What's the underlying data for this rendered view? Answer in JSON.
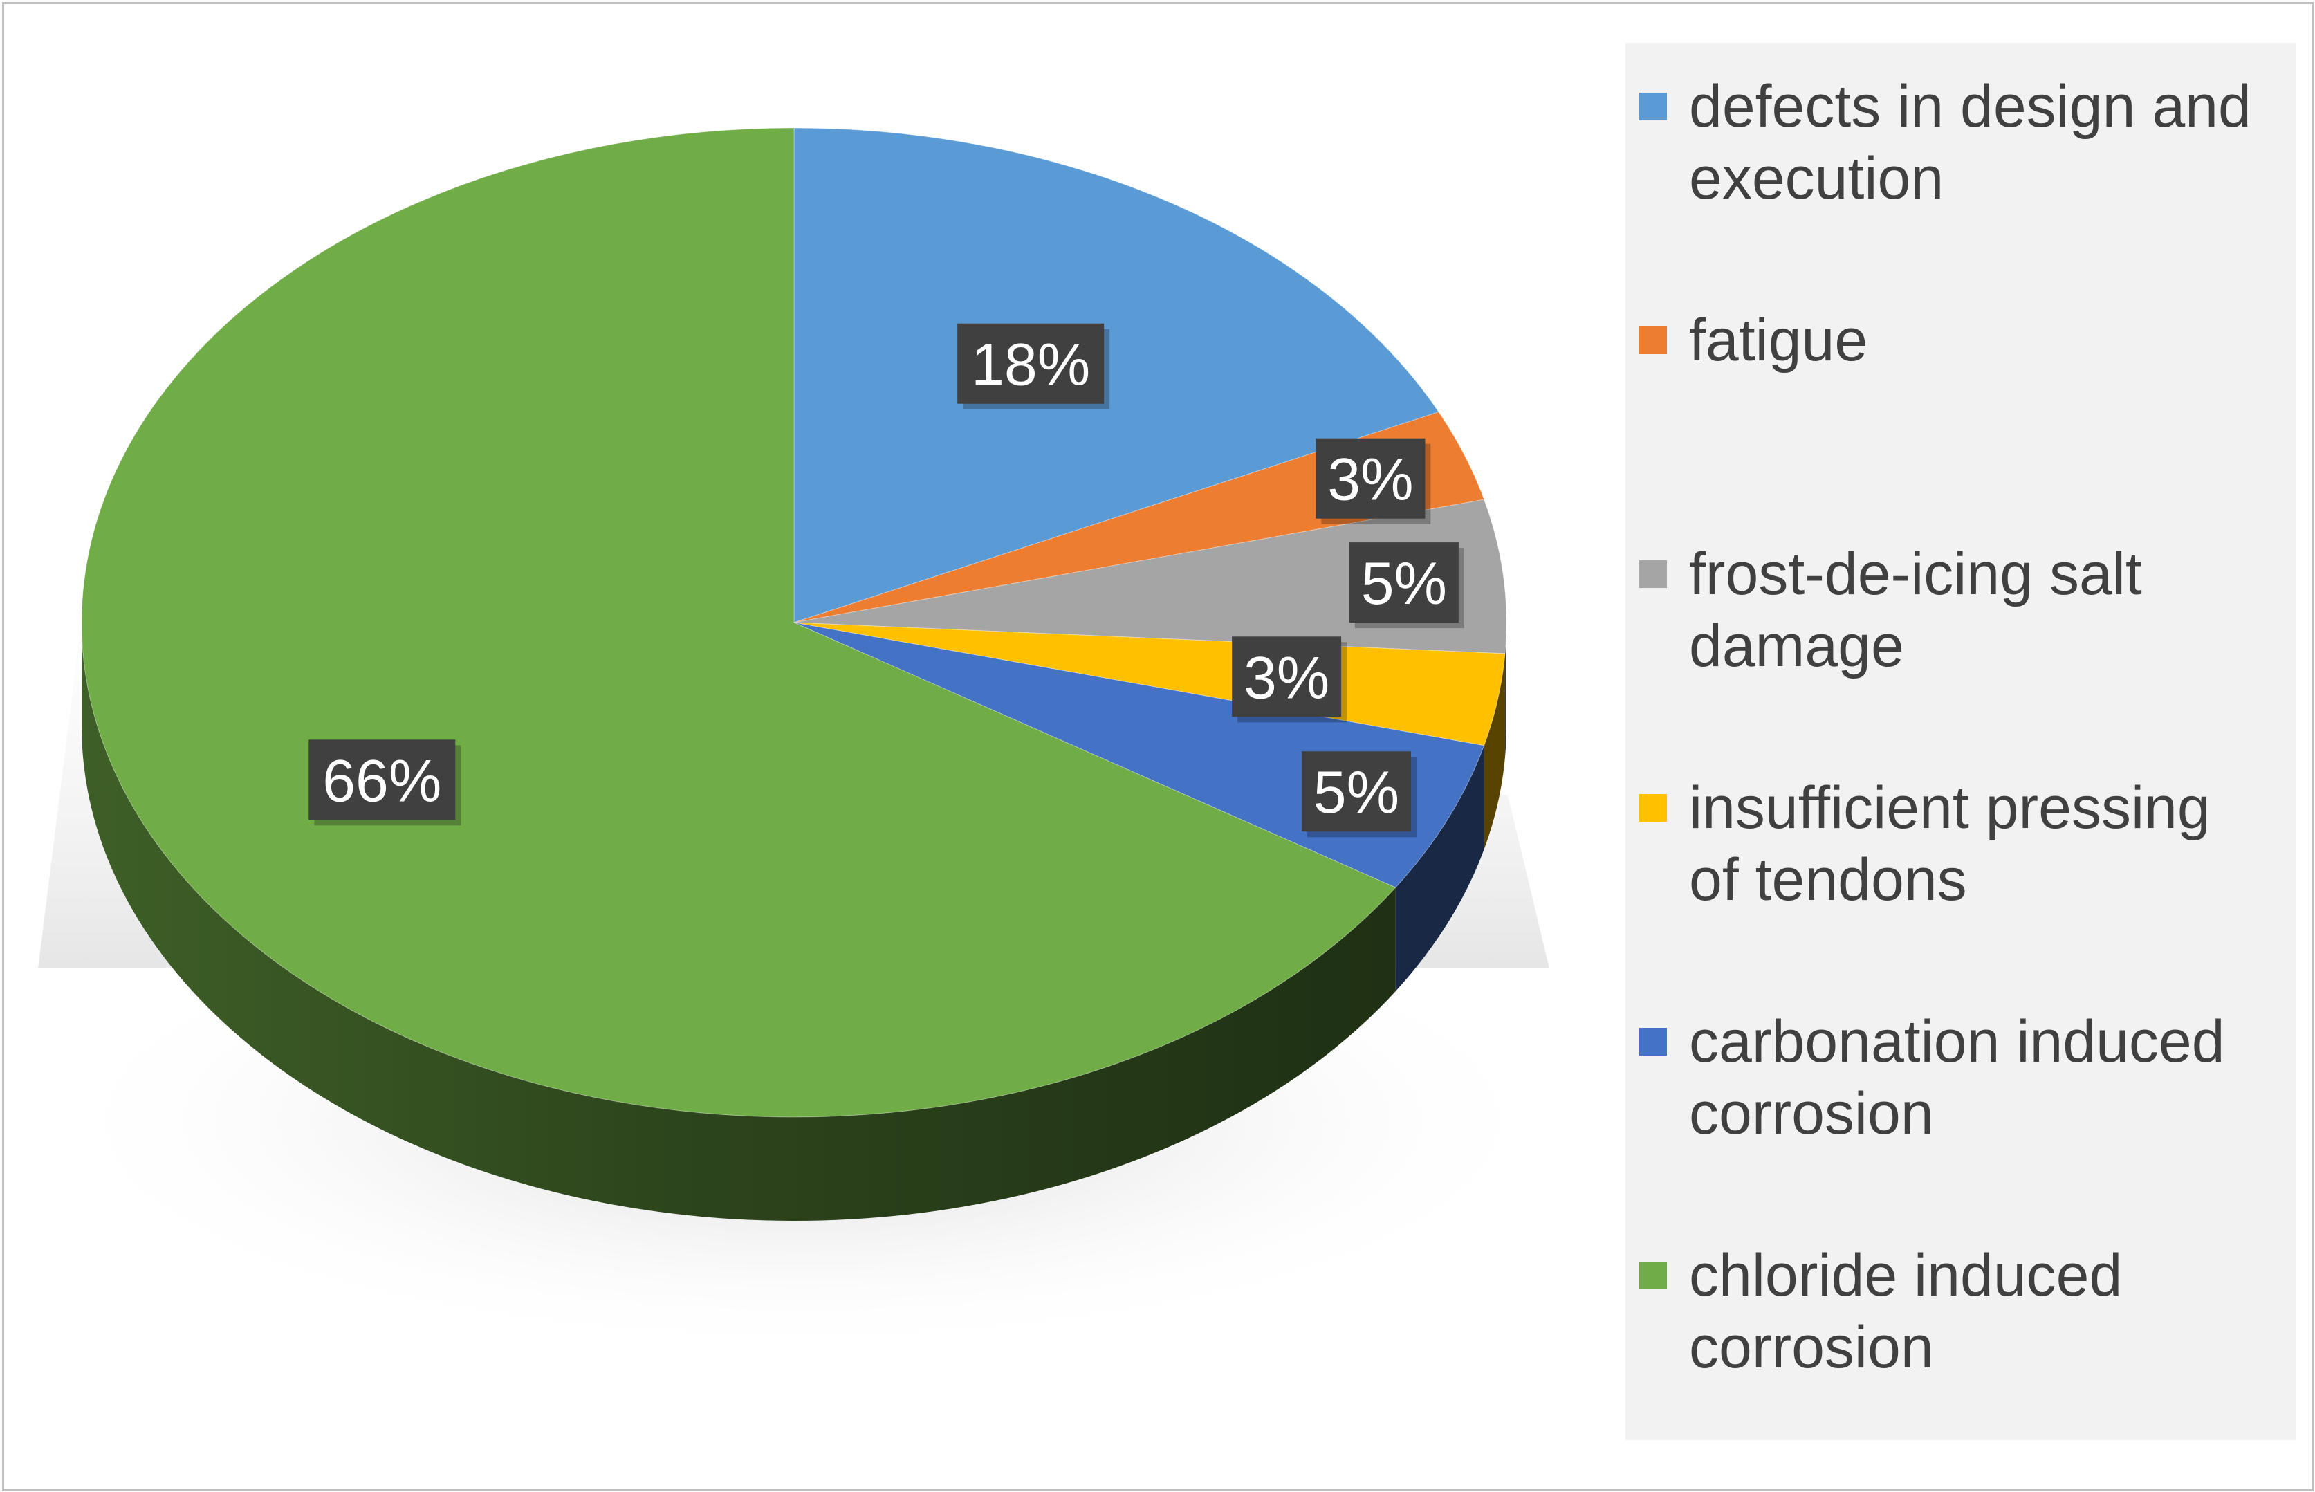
{
  "chart_data": {
    "type": "pie",
    "style": "3d",
    "labels": [
      "defects in design and execution",
      "fatigue",
      "frost-de-icing salt damage",
      "insufficient pressing of tendons",
      "carbonation induced corrosion",
      "chloride induced corrosion"
    ],
    "values": [
      18,
      3,
      5,
      3,
      5,
      66
    ],
    "data_labels": [
      "18%",
      "3%",
      "5%",
      "3%",
      "5%",
      "66%"
    ],
    "colors": [
      "#5b9bd5",
      "#ed7d31",
      "#a5a5a5",
      "#ffc000",
      "#4472c4",
      "#70ad47"
    ],
    "legend_position": "right"
  },
  "legend": {
    "items": [
      {
        "lines": [
          "defects in design and",
          "execution"
        ],
        "color": "#5b9bd5"
      },
      {
        "lines": [
          "fatigue"
        ],
        "color": "#ed7d31"
      },
      {
        "lines": [
          "frost-de-icing salt",
          "damage"
        ],
        "color": "#a5a5a5"
      },
      {
        "lines": [
          "insufficient pressing",
          "of tendons"
        ],
        "color": "#ffc000"
      },
      {
        "lines": [
          "carbonation induced",
          "corrosion"
        ],
        "color": "#4472c4"
      },
      {
        "lines": [
          "chloride induced",
          "corrosion"
        ],
        "color": "#70ad47"
      }
    ]
  }
}
